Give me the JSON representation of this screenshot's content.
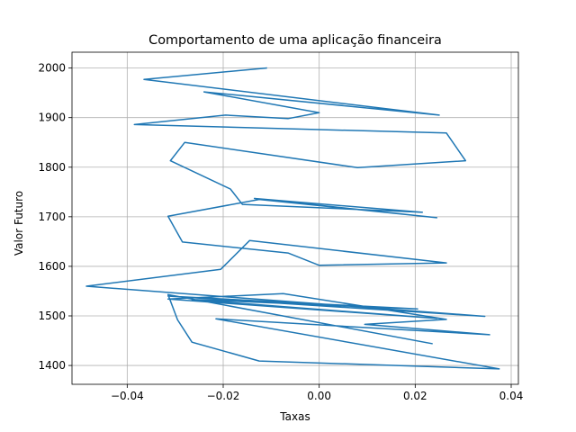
{
  "chart_data": {
    "type": "line",
    "title": "Comportamento de uma aplicação financeira",
    "xlabel": "Taxas",
    "ylabel": "Valor Futuro",
    "xlim": [
      -0.0515,
      0.0415
    ],
    "ylim": [
      1362,
      2032
    ],
    "xticks": [
      -0.04,
      -0.02,
      0.0,
      0.02,
      0.04
    ],
    "xtick_labels": [
      "−0.04",
      "−0.02",
      "0.00",
      "0.02",
      "0.04"
    ],
    "yticks": [
      1400,
      1500,
      1600,
      1700,
      1800,
      1900,
      2000
    ],
    "ytick_labels": [
      "1400",
      "1500",
      "1600",
      "1700",
      "1800",
      "1900",
      "2000"
    ],
    "grid": true,
    "color": "#1f77b4",
    "series": [
      {
        "x": [
          -0.011,
          -0.0365,
          0.025,
          -0.024,
          0.0,
          -0.0065,
          -0.0195,
          -0.0385,
          0.0265,
          0.0305,
          0.008,
          -0.028,
          -0.031,
          -0.0185,
          -0.016,
          0.0215,
          -0.0135,
          0.0245,
          -0.0125,
          -0.0315,
          -0.0285,
          -0.0065,
          0.0,
          0.0265,
          -0.0145,
          -0.0205,
          -0.0485,
          -0.0365,
          0.0345,
          -0.0315,
          0.0205,
          -0.0265,
          0.0245,
          -0.0315,
          -0.0075,
          0.0265,
          0.0095,
          0.0355,
          -0.0215,
          0.0375,
          -0.0125,
          -0.0265,
          -0.0295,
          -0.0315,
          0.0235
        ],
        "y": [
          2000,
          1977,
          1905,
          1952,
          1910,
          1898,
          1905,
          1886,
          1869,
          1813,
          1799,
          1850,
          1813,
          1756,
          1725,
          1709,
          1737,
          1698,
          1735,
          1701,
          1649,
          1627,
          1602,
          1607,
          1652,
          1594,
          1560,
          1551,
          1499,
          1540,
          1514,
          1533,
          1495,
          1534,
          1545,
          1493,
          1483,
          1462,
          1494,
          1393,
          1409,
          1447,
          1492,
          1543,
          1444
        ]
      }
    ]
  }
}
